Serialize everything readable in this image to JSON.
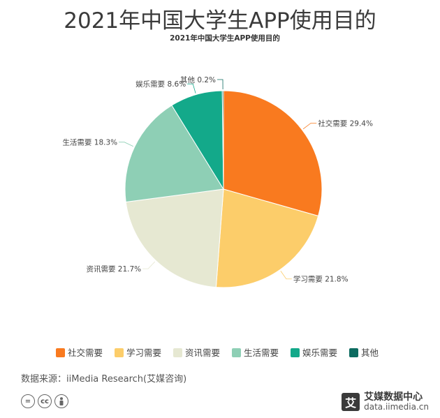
{
  "header": {
    "title": "2021年中国大学生APP使用目的"
  },
  "chart_data": {
    "type": "pie",
    "title": "2021年中国大学生APP使用目的",
    "start_angle_deg": 0,
    "direction": "clockwise",
    "legend_position": "bottom",
    "slices": [
      {
        "label": "社交需要",
        "value": 29.4,
        "display": "29.4%",
        "color": "#f97a1f"
      },
      {
        "label": "学习需要",
        "value": 21.8,
        "display": "21.8%",
        "color": "#fccd6a"
      },
      {
        "label": "资讯需要",
        "value": 21.7,
        "display": "21.7%",
        "color": "#e6e8d2"
      },
      {
        "label": "生活需要",
        "value": 18.3,
        "display": "18.3%",
        "color": "#8ecfb5"
      },
      {
        "label": "娱乐需要",
        "value": 8.6,
        "display": "8.6%",
        "color": "#13a98a"
      },
      {
        "label": "其他",
        "value": 0.2,
        "display": "0.2%",
        "color": "#0c6b60"
      }
    ]
  },
  "footer": {
    "source": "数据来源：iiMedia Research(艾媒咨询)",
    "license_icons": [
      "equals-icon",
      "cc-icon",
      "person-icon"
    ],
    "brand_name": "艾媒数据中心",
    "brand_url": "data.iimedia.cn",
    "brand_mark": "艾"
  }
}
